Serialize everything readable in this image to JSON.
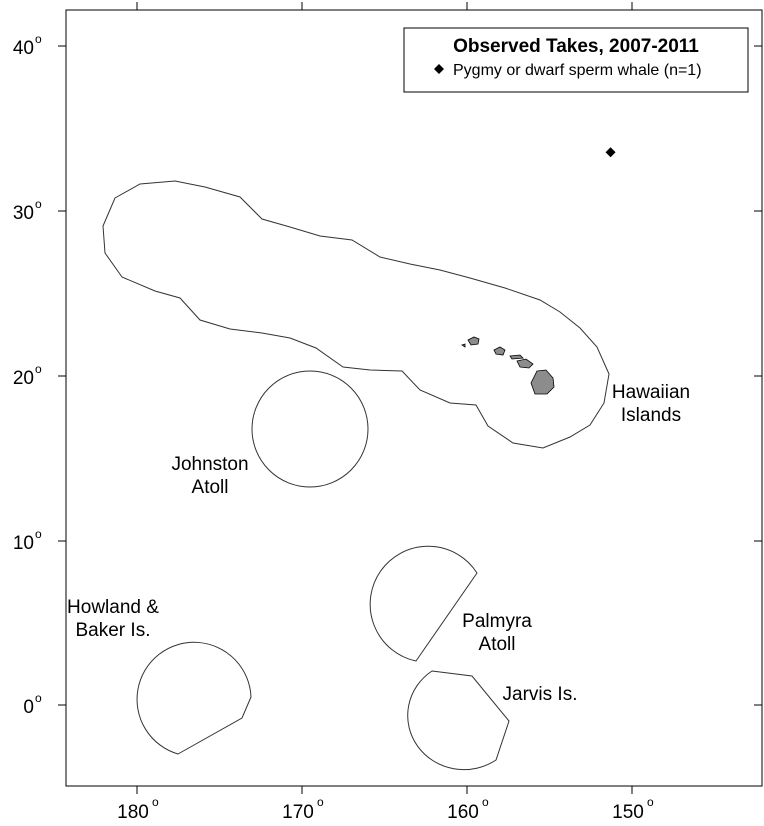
{
  "map": {
    "x_ticks": [
      {
        "value": 180,
        "label": "180"
      },
      {
        "value": 170,
        "label": "170"
      },
      {
        "value": 160,
        "label": "160"
      },
      {
        "value": 150,
        "label": "150"
      }
    ],
    "y_ticks": [
      {
        "value": 0,
        "label": "0"
      },
      {
        "value": 10,
        "label": "10"
      },
      {
        "value": 20,
        "label": "20"
      },
      {
        "value": 30,
        "label": "30"
      },
      {
        "value": 40,
        "label": "40"
      }
    ],
    "degree_symbol": "o",
    "regions": [
      {
        "id": "hawaiian-islands",
        "line1": "Hawaiian",
        "line2": "Islands"
      },
      {
        "id": "johnston-atoll",
        "line1": "Johnston",
        "line2": "Atoll"
      },
      {
        "id": "howland-baker",
        "line1": "Howland &",
        "line2": "Baker Is."
      },
      {
        "id": "palmyra-atoll",
        "line1": "Palmyra",
        "line2": "Atoll"
      },
      {
        "id": "jarvis",
        "line1": "Jarvis Is.",
        "line2": ""
      }
    ],
    "legend": {
      "title": "Observed Takes, 2007-2011",
      "entry": "Pygmy or dwarf sperm whale (n=1)",
      "marker": "diamond"
    },
    "observations": [
      {
        "species": "Pygmy or dwarf sperm whale",
        "lon_w": 151.3,
        "lat_n": 33.5
      }
    ],
    "colors": {
      "island_fill": "#8c8c8c",
      "outline": "#333333",
      "marker": "#000000"
    }
  }
}
